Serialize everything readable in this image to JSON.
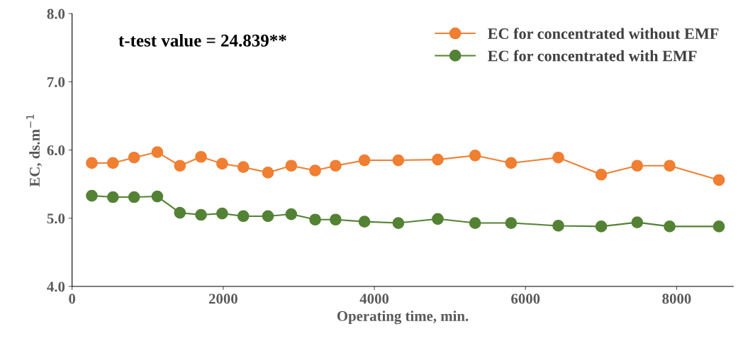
{
  "chart_data": {
    "type": "line",
    "xlabel": "Operating time, min.",
    "ylabel": "EC, ds.m$^{−1}$",
    "x": [
      261,
      541,
      821,
      1128,
      1427,
      1706,
      1986,
      2266,
      2592,
      2900,
      3217,
      3487,
      3869,
      4317,
      4839,
      5333,
      5809,
      6434,
      7002,
      7478,
      7907,
      8559
    ],
    "series": [
      {
        "name": "EC for concentrated without EMF",
        "color": "#f07f32",
        "values": [
          5.81,
          5.81,
          5.89,
          5.97,
          5.77,
          5.9,
          5.8,
          5.75,
          5.67,
          5.77,
          5.7,
          5.77,
          5.85,
          5.85,
          5.86,
          5.92,
          5.81,
          5.89,
          5.64,
          5.77,
          5.77,
          5.56
        ]
      },
      {
        "name": "EC for concentrated with EMF",
        "color": "#548235",
        "values": [
          5.33,
          5.31,
          5.31,
          5.32,
          5.08,
          5.05,
          5.07,
          5.03,
          5.03,
          5.06,
          4.98,
          4.98,
          4.95,
          4.93,
          4.99,
          4.93,
          4.93,
          4.89,
          4.88,
          4.94,
          4.88,
          4.88
        ]
      }
    ],
    "annotations": [
      "t-test value = 24.839**"
    ],
    "xlim": [
      0,
      8750
    ],
    "xticks": [
      0,
      2000,
      4000,
      6000,
      8000
    ],
    "ylim": [
      4.0,
      8.0
    ],
    "yticks": [
      {
        "value": 4,
        "label": "4.0"
      },
      {
        "value": 5,
        "label": "5.0"
      },
      {
        "value": 6,
        "label": "6.0"
      },
      {
        "value": 7,
        "label": "7.0"
      },
      {
        "value": 8,
        "label": "8.0"
      }
    ],
    "marker": "circle",
    "line_style": "solid",
    "grid": false,
    "legend": "top right"
  }
}
